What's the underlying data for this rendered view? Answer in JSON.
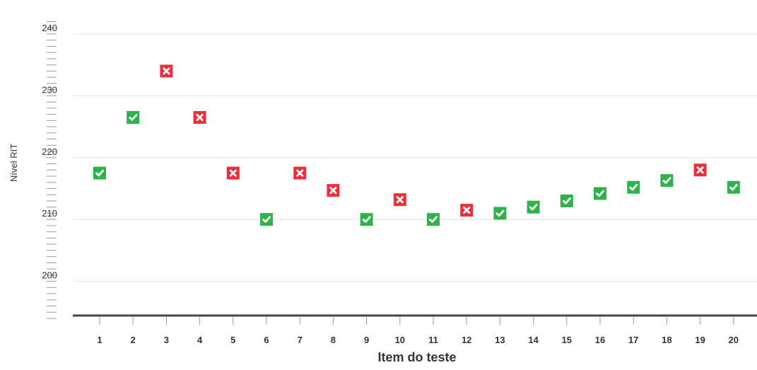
{
  "chart_data": {
    "type": "scatter",
    "title": "",
    "xlabel": "Item do teste",
    "ylabel": "Nível RIT",
    "ylim": [
      194,
      242
    ],
    "yticks": [
      200,
      210,
      220,
      230,
      240
    ],
    "grid": true,
    "categories": [
      "1",
      "2",
      "3",
      "4",
      "5",
      "6",
      "7",
      "8",
      "9",
      "10",
      "11",
      "12",
      "13",
      "14",
      "15",
      "16",
      "17",
      "18",
      "19",
      "20"
    ],
    "values": [
      217.5,
      226.5,
      234,
      226.5,
      217.5,
      210,
      217.5,
      214.7,
      210,
      213.2,
      210,
      211.5,
      211,
      212,
      213,
      214.2,
      215.2,
      216.3,
      218,
      215.2
    ],
    "results": [
      "correct",
      "correct",
      "incorrect",
      "incorrect",
      "incorrect",
      "correct",
      "incorrect",
      "incorrect",
      "correct",
      "incorrect",
      "correct",
      "incorrect",
      "correct",
      "correct",
      "correct",
      "correct",
      "correct",
      "correct",
      "incorrect",
      "correct"
    ],
    "colors": {
      "correct": "#2db34a",
      "incorrect": "#e8313a",
      "axis": "#444444",
      "grid": "#e2e2e2"
    },
    "icons": {
      "correct": "check-icon",
      "incorrect": "x-icon"
    }
  }
}
